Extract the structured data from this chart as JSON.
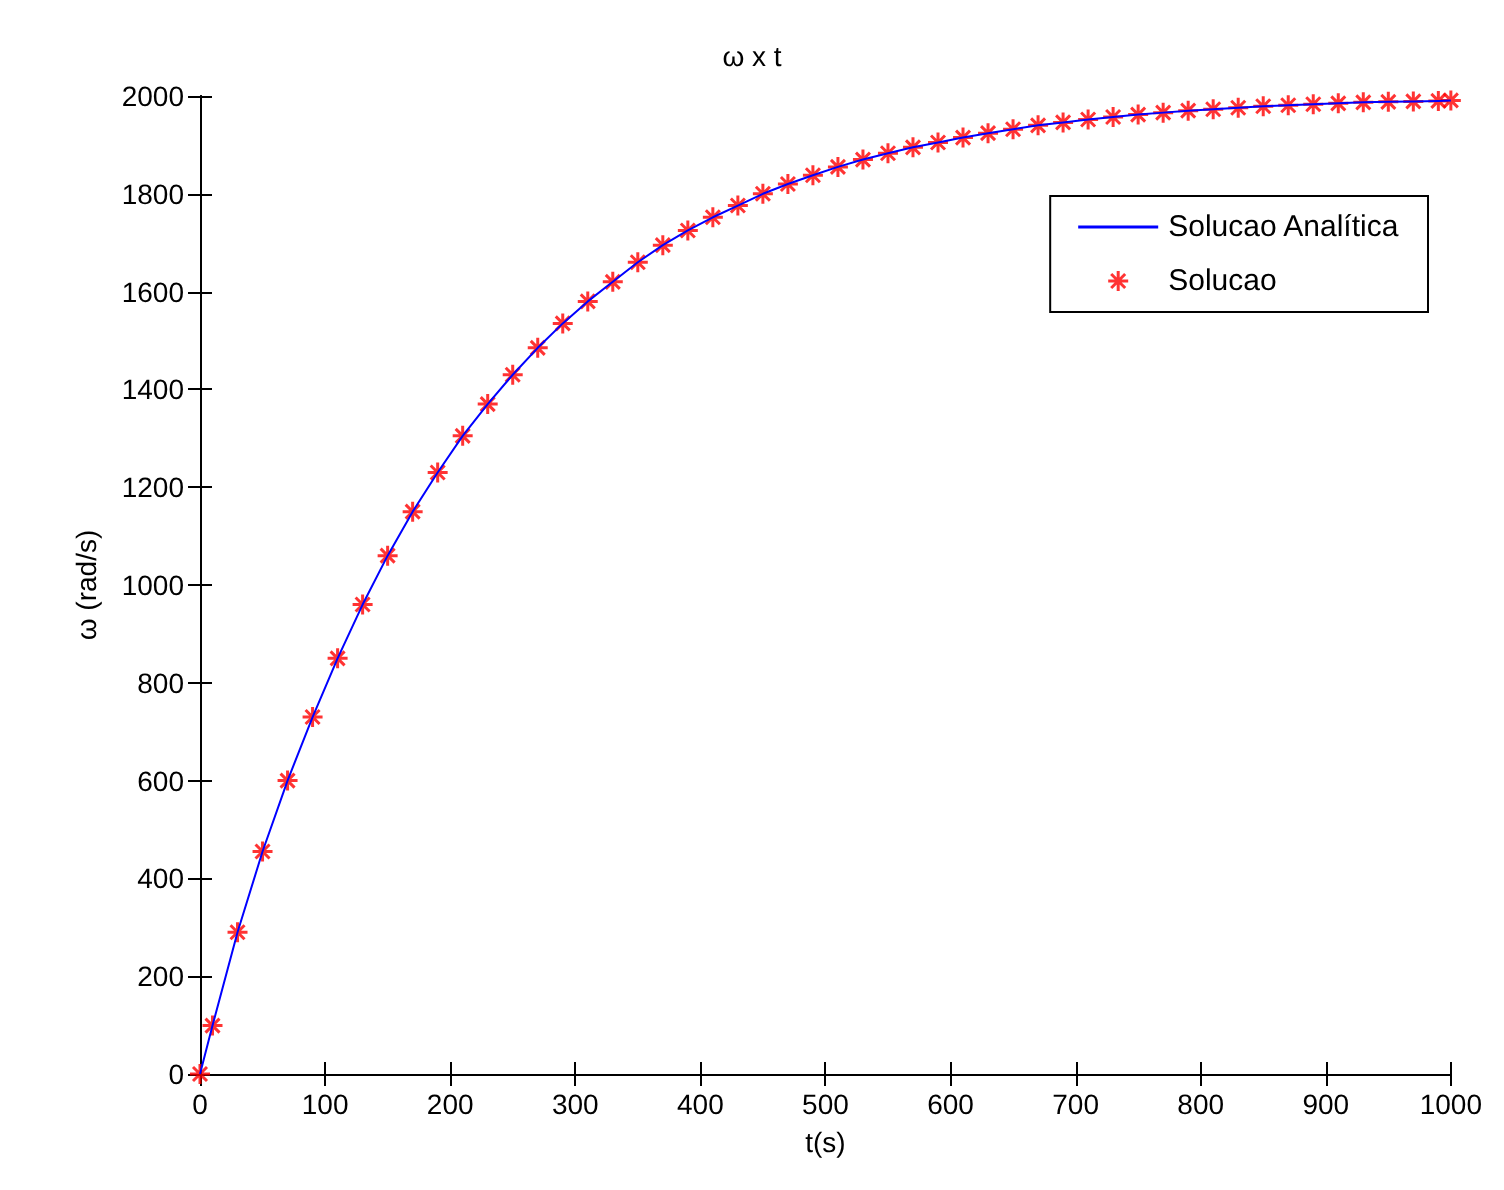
{
  "chart_data": {
    "type": "line",
    "title": "ω x t",
    "xlabel": "t(s)",
    "ylabel": "ω (rad/s)",
    "x": [
      0,
      10,
      30,
      50,
      70,
      90,
      110,
      130,
      150,
      170,
      190,
      210,
      230,
      250,
      270,
      290,
      310,
      330,
      350,
      370,
      390,
      410,
      430,
      450,
      470,
      490,
      510,
      530,
      550,
      570,
      590,
      610,
      630,
      650,
      670,
      690,
      710,
      730,
      750,
      770,
      790,
      810,
      830,
      850,
      870,
      890,
      910,
      930,
      950,
      970,
      990,
      1000
    ],
    "series": [
      {
        "name": "Solucao Analítica",
        "color": "#0000ff",
        "marker": "none",
        "line_style": "solid",
        "values": [
          0,
          99,
          290,
          455,
          600,
          730,
          850,
          960,
          1060,
          1150,
          1230,
          1305,
          1370,
          1430,
          1485,
          1535,
          1580,
          1620,
          1660,
          1695,
          1725,
          1752,
          1776,
          1800,
          1820,
          1838,
          1855,
          1870,
          1883,
          1895,
          1905,
          1915,
          1924,
          1932,
          1940,
          1946,
          1952,
          1957,
          1962,
          1966,
          1970,
          1973,
          1976,
          1979,
          1981,
          1983,
          1985,
          1987,
          1988,
          1989,
          1990,
          1991
        ]
      },
      {
        "name": "Solucao",
        "type": "scatter",
        "color": "#ff0000",
        "marker": "cross",
        "values": [
          0,
          99,
          290,
          455,
          600,
          730,
          850,
          960,
          1060,
          1150,
          1230,
          1305,
          1370,
          1430,
          1485,
          1535,
          1580,
          1620,
          1660,
          1695,
          1725,
          1752,
          1776,
          1800,
          1820,
          1838,
          1855,
          1870,
          1883,
          1895,
          1905,
          1915,
          1924,
          1932,
          1940,
          1946,
          1952,
          1957,
          1962,
          1966,
          1970,
          1973,
          1976,
          1979,
          1981,
          1983,
          1985,
          1987,
          1988,
          1989,
          1990,
          1991
        ]
      }
    ],
    "xlim": [
      0,
      1000
    ],
    "xticks": [
      0,
      100,
      200,
      300,
      400,
      500,
      600,
      700,
      800,
      900,
      1000
    ],
    "ylim": [
      0,
      2000
    ],
    "yticks": [
      0,
      200,
      400,
      600,
      800,
      1000,
      1200,
      1400,
      1600,
      1800,
      2000
    ],
    "grid": false,
    "legend": "top right"
  }
}
